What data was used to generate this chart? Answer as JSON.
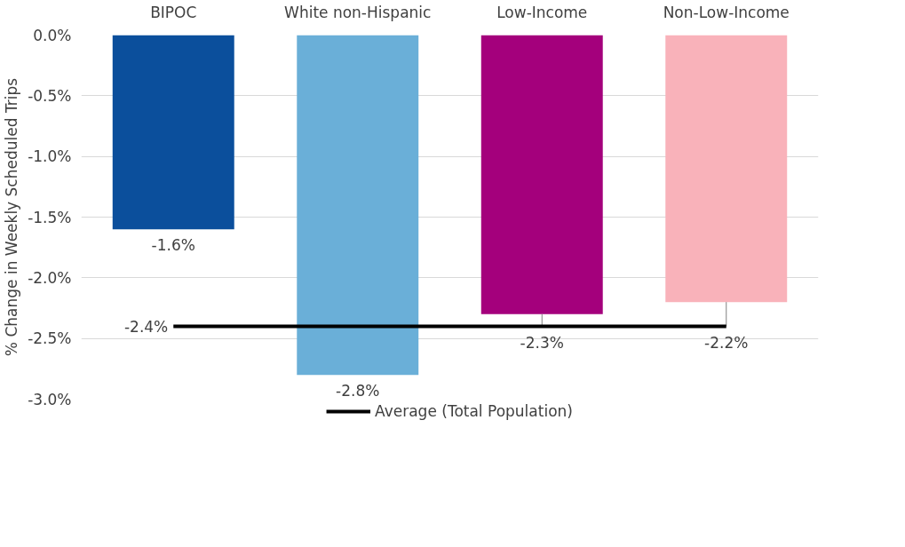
{
  "chart_data": {
    "type": "bar",
    "ylabel": "% Change in Weekly Scheduled Trips",
    "categories": [
      "BIPOC",
      "White non-Hispanic",
      "Low-Income",
      "Non-Low-Income"
    ],
    "values": [
      -1.6,
      -2.8,
      -2.3,
      -2.2
    ],
    "colors": [
      "#0b4f9c",
      "#6aafd8",
      "#a4007c",
      "#f9b2ba"
    ],
    "value_labels": [
      "-1.6%",
      "-2.8%",
      "-2.3%",
      "-2.2%"
    ],
    "series": [
      {
        "type": "line",
        "name": "Average (Total Population)",
        "color": "#000000",
        "values": [
          -2.4,
          -2.4,
          -2.4,
          -2.4
        ],
        "value_labels": [
          "-2.4%",
          null,
          null,
          null
        ]
      }
    ],
    "ylim": [
      -3.0,
      0.0
    ],
    "yticks": [
      {
        "value": 0.0,
        "label": "0.0%"
      },
      {
        "value": -0.5,
        "label": "-0.5%"
      },
      {
        "value": -1.0,
        "label": "-1.0%"
      },
      {
        "value": -1.5,
        "label": "-1.5%"
      },
      {
        "value": -2.0,
        "label": "-2.0%"
      },
      {
        "value": -2.5,
        "label": "-2.5%"
      },
      {
        "value": -3.0,
        "label": "-3.0%"
      }
    ],
    "grid": "y",
    "legend": "bottom"
  }
}
